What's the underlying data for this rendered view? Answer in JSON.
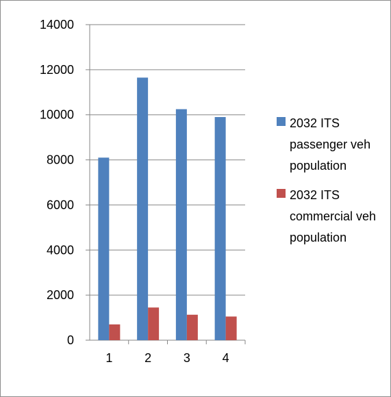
{
  "chart_data": {
    "type": "bar",
    "categories": [
      "1",
      "2",
      "3",
      "4"
    ],
    "series": [
      {
        "name": "2032 ITS passenger veh population",
        "color": "#4F81BD",
        "values": [
          8100,
          11650,
          10250,
          9900
        ]
      },
      {
        "name": "2032 ITS commercial veh population",
        "color": "#C0504D",
        "values": [
          700,
          1450,
          1130,
          1050
        ]
      }
    ],
    "y_ticks": [
      "0",
      "2000",
      "4000",
      "6000",
      "8000",
      "10000",
      "12000",
      "14000"
    ],
    "ylim": [
      0,
      14000
    ],
    "grid": true,
    "legend_position": "right",
    "title": "",
    "xlabel": "",
    "ylabel": ""
  }
}
